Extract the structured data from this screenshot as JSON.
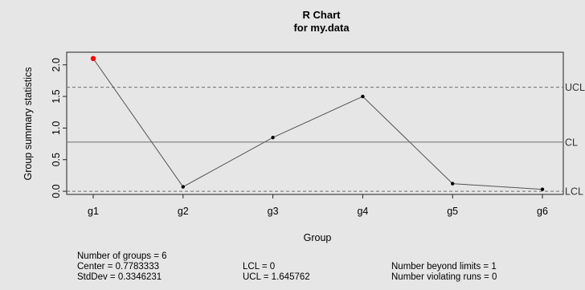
{
  "chart_data": {
    "type": "line",
    "title": "R Chart",
    "subtitle": "for my.data",
    "xlabel": "Group",
    "ylabel": "Group summary statistics",
    "categories": [
      "g1",
      "g2",
      "g3",
      "g4",
      "g5",
      "g6"
    ],
    "values": [
      2.1,
      0.07,
      0.85,
      1.5,
      0.12,
      0.03
    ],
    "point_colors": [
      "#ff0000",
      "#000000",
      "#000000",
      "#000000",
      "#000000",
      "#000000"
    ],
    "ylim": [
      -0.05,
      2.2
    ],
    "yticks": [
      {
        "value": 0.0,
        "label": "0.0"
      },
      {
        "value": 0.5,
        "label": "0.5"
      },
      {
        "value": 1.0,
        "label": "1.0"
      },
      {
        "value": 1.5,
        "label": "1.5"
      },
      {
        "value": 2.0,
        "label": "2.0"
      }
    ],
    "control_lines": [
      {
        "name": "UCL",
        "value": 1.645762,
        "style": "dashed"
      },
      {
        "name": "CL",
        "value": 0.7783333,
        "style": "solid"
      },
      {
        "name": "LCL",
        "value": 0,
        "style": "dashed"
      }
    ],
    "grid": false,
    "legend": "none"
  },
  "stats": {
    "groups": "Number of groups = 6",
    "center": "Center = 0.7783333",
    "stddev": "StdDev = 0.3346231",
    "lcl": "LCL = 0",
    "ucl": "UCL = 1.645762",
    "beyond": "Number beyond limits = 1",
    "violating": "Number violating runs = 0"
  },
  "colors": {
    "background": "#e6e6e6",
    "series_line": "#555555",
    "control_line": "#6e6e6e",
    "violation_point": "#ff0000",
    "normal_point": "#000000"
  }
}
